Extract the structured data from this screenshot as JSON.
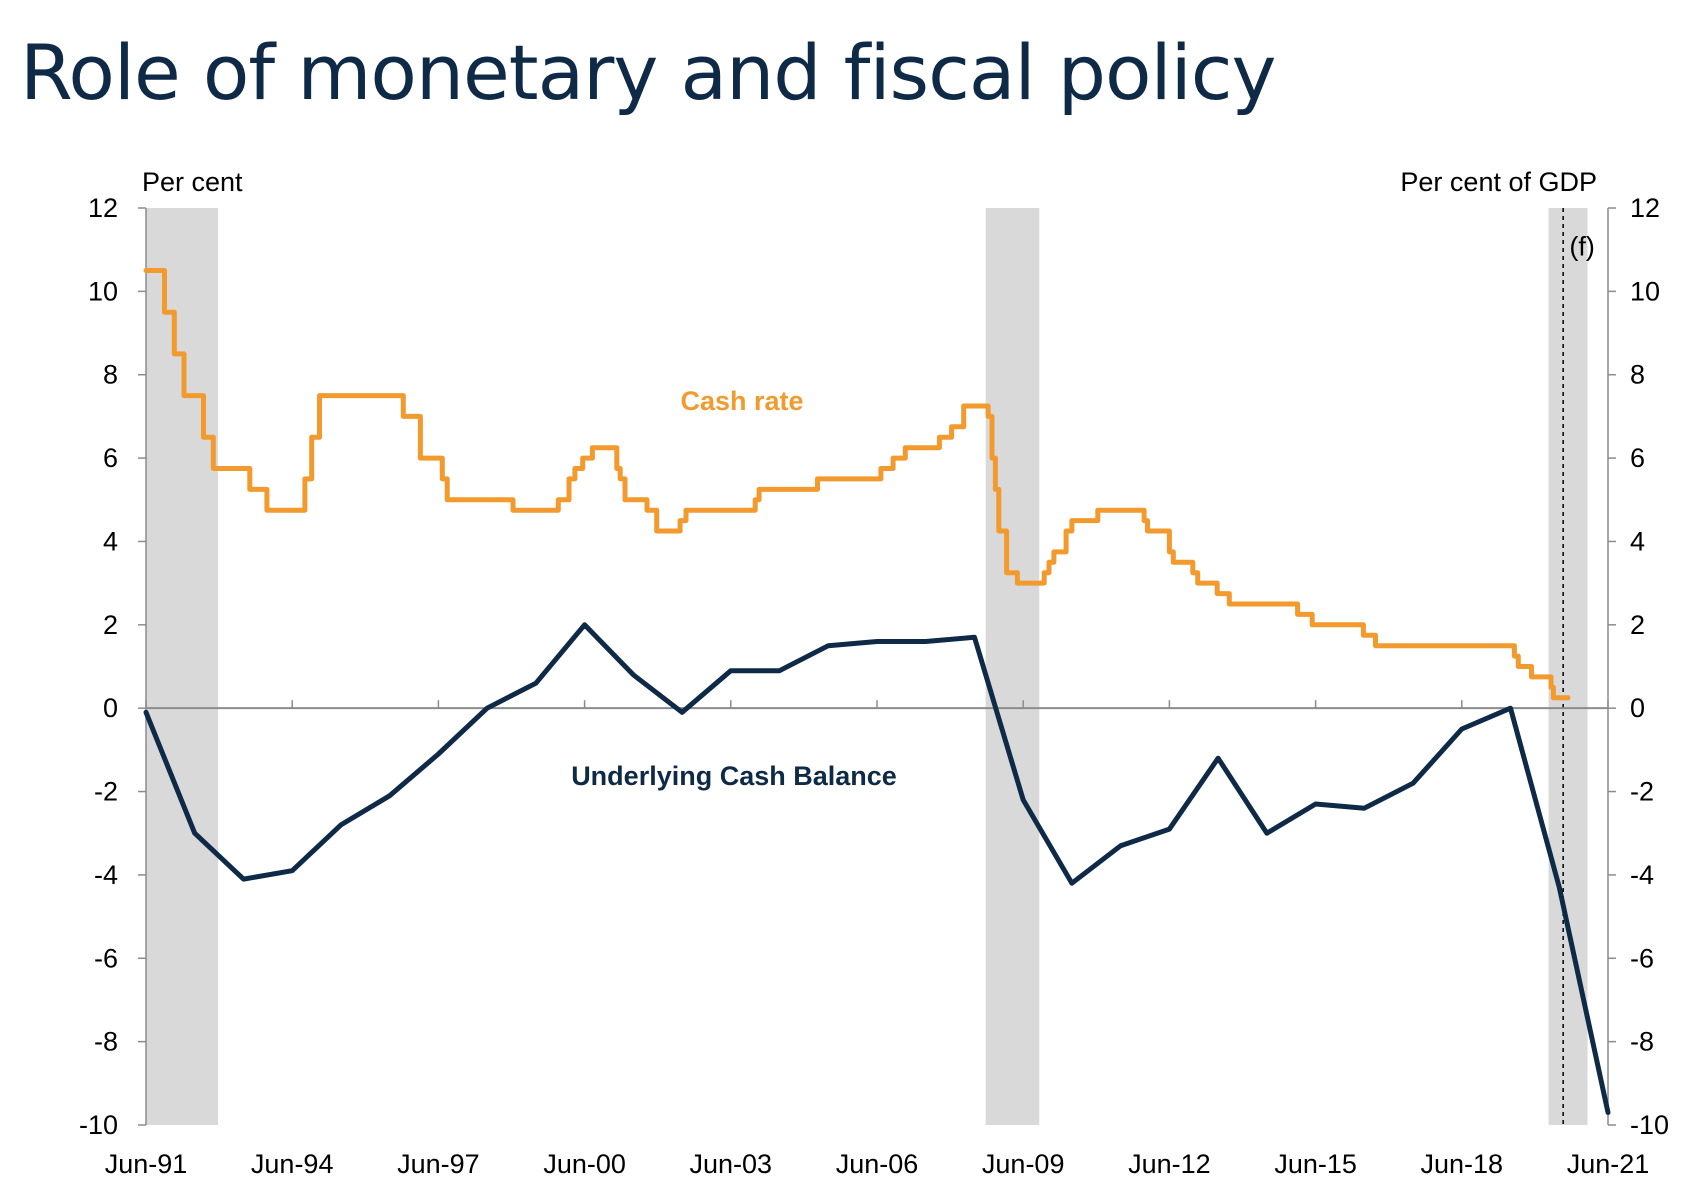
{
  "title": "Role of monetary and fiscal policy",
  "chart_data": {
    "type": "line",
    "left_axis_label": "Per cent",
    "right_axis_label": "Per cent of GDP",
    "forecast_label": "(f)",
    "ylim": [
      -10,
      12
    ],
    "yticks": [
      12,
      10,
      8,
      6,
      4,
      2,
      0,
      -2,
      -4,
      -6,
      -8,
      -10
    ],
    "ytick_labels": [
      "12",
      "10",
      "8",
      "6",
      "4",
      "2",
      "0",
      "-2",
      "-4",
      "-6",
      "-8",
      "-10"
    ],
    "xlim": [
      1991.42,
      2021.42
    ],
    "xticks": [
      1991.42,
      1994.42,
      1997.42,
      2000.42,
      2003.42,
      2006.42,
      2009.42,
      2012.42,
      2015.42,
      2018.42,
      2021.42
    ],
    "xtick_labels": [
      "Jun-91",
      "Jun-94",
      "Jun-97",
      "Jun-00",
      "Jun-03",
      "Jun-06",
      "Jun-09",
      "Jun-12",
      "Jun-15",
      "Jun-18",
      "Jun-21"
    ],
    "recession_bands": [
      [
        1991.42,
        1992.9
      ],
      [
        2008.65,
        2009.75
      ],
      [
        2020.2,
        2021.0
      ]
    ],
    "forecast_start": 2020.5,
    "colors": {
      "cash_rate": "#f29a2e",
      "ucb": "#0f2a47",
      "band": "#d9d9d9",
      "zero_line": "#8c8c8c"
    },
    "series": [
      {
        "name": "Cash rate",
        "style": "step",
        "points": [
          [
            1991.42,
            10.5
          ],
          [
            1991.75,
            10.5
          ],
          [
            1991.8,
            9.5
          ],
          [
            1991.95,
            9.5
          ],
          [
            1992.0,
            8.5
          ],
          [
            1992.12,
            8.5
          ],
          [
            1992.2,
            7.5
          ],
          [
            1992.5,
            7.5
          ],
          [
            1992.6,
            6.5
          ],
          [
            1992.7,
            6.5
          ],
          [
            1992.8,
            5.75
          ],
          [
            1993.5,
            5.75
          ],
          [
            1993.55,
            5.25
          ],
          [
            1993.8,
            5.25
          ],
          [
            1993.9,
            4.75
          ],
          [
            1994.6,
            4.75
          ],
          [
            1994.68,
            5.5
          ],
          [
            1994.75,
            5.5
          ],
          [
            1994.82,
            6.5
          ],
          [
            1994.9,
            6.5
          ],
          [
            1994.98,
            7.5
          ],
          [
            1996.6,
            7.5
          ],
          [
            1996.7,
            7.0
          ],
          [
            1996.95,
            7.0
          ],
          [
            1997.05,
            6.0
          ],
          [
            1997.4,
            6.0
          ],
          [
            1997.5,
            5.5
          ],
          [
            1997.55,
            5.5
          ],
          [
            1997.6,
            5.0
          ],
          [
            1998.8,
            5.0
          ],
          [
            1998.95,
            4.75
          ],
          [
            1999.8,
            4.75
          ],
          [
            1999.88,
            5.0
          ],
          [
            2000.0,
            5.0
          ],
          [
            2000.1,
            5.5
          ],
          [
            2000.15,
            5.5
          ],
          [
            2000.22,
            5.75
          ],
          [
            2000.3,
            5.75
          ],
          [
            2000.38,
            6.0
          ],
          [
            2000.5,
            6.0
          ],
          [
            2000.58,
            6.25
          ],
          [
            2001.0,
            6.25
          ],
          [
            2001.08,
            5.75
          ],
          [
            2001.15,
            5.5
          ],
          [
            2001.25,
            5.0
          ],
          [
            2001.6,
            5.0
          ],
          [
            2001.7,
            4.75
          ],
          [
            2001.8,
            4.75
          ],
          [
            2001.9,
            4.25
          ],
          [
            2002.3,
            4.25
          ],
          [
            2002.38,
            4.5
          ],
          [
            2002.5,
            4.75
          ],
          [
            2003.85,
            4.75
          ],
          [
            2003.92,
            5.0
          ],
          [
            2004.0,
            5.25
          ],
          [
            2005.1,
            5.25
          ],
          [
            2005.2,
            5.5
          ],
          [
            2006.4,
            5.5
          ],
          [
            2006.5,
            5.75
          ],
          [
            2006.65,
            5.75
          ],
          [
            2006.75,
            6.0
          ],
          [
            2006.9,
            6.0
          ],
          [
            2007.0,
            6.25
          ],
          [
            2007.6,
            6.25
          ],
          [
            2007.7,
            6.5
          ],
          [
            2007.85,
            6.5
          ],
          [
            2007.95,
            6.75
          ],
          [
            2008.1,
            6.75
          ],
          [
            2008.2,
            7.25
          ],
          [
            2008.6,
            7.25
          ],
          [
            2008.7,
            7.0
          ],
          [
            2008.78,
            6.0
          ],
          [
            2008.85,
            5.25
          ],
          [
            2008.92,
            4.25
          ],
          [
            2009.0,
            4.25
          ],
          [
            2009.08,
            3.25
          ],
          [
            2009.2,
            3.25
          ],
          [
            2009.3,
            3.0
          ],
          [
            2009.75,
            3.0
          ],
          [
            2009.85,
            3.25
          ],
          [
            2009.95,
            3.5
          ],
          [
            2010.05,
            3.75
          ],
          [
            2010.2,
            3.75
          ],
          [
            2010.3,
            4.25
          ],
          [
            2010.42,
            4.5
          ],
          [
            2010.85,
            4.5
          ],
          [
            2010.95,
            4.75
          ],
          [
            2011.8,
            4.75
          ],
          [
            2011.9,
            4.5
          ],
          [
            2011.97,
            4.25
          ],
          [
            2012.35,
            4.25
          ],
          [
            2012.42,
            3.75
          ],
          [
            2012.5,
            3.5
          ],
          [
            2012.8,
            3.5
          ],
          [
            2012.9,
            3.25
          ],
          [
            2013.0,
            3.0
          ],
          [
            2013.3,
            3.0
          ],
          [
            2013.4,
            2.75
          ],
          [
            2013.55,
            2.75
          ],
          [
            2013.65,
            2.5
          ],
          [
            2014.95,
            2.5
          ],
          [
            2015.05,
            2.25
          ],
          [
            2015.25,
            2.25
          ],
          [
            2015.35,
            2.0
          ],
          [
            2016.3,
            2.0
          ],
          [
            2016.4,
            1.75
          ],
          [
            2016.55,
            1.75
          ],
          [
            2016.65,
            1.5
          ],
          [
            2019.42,
            1.5
          ],
          [
            2019.5,
            1.25
          ],
          [
            2019.58,
            1.0
          ],
          [
            2019.75,
            1.0
          ],
          [
            2019.85,
            0.75
          ],
          [
            2020.15,
            0.75
          ],
          [
            2020.25,
            0.5
          ],
          [
            2020.3,
            0.25
          ],
          [
            2020.6,
            0.25
          ]
        ]
      },
      {
        "name": "Underlying Cash Balance",
        "style": "line",
        "points": [
          [
            1991.42,
            -0.1
          ],
          [
            1992.42,
            -3.0
          ],
          [
            1993.42,
            -4.1
          ],
          [
            1994.42,
            -3.9
          ],
          [
            1995.42,
            -2.8
          ],
          [
            1996.42,
            -2.1
          ],
          [
            1997.42,
            -1.1
          ],
          [
            1998.42,
            0.0
          ],
          [
            1999.42,
            0.6
          ],
          [
            2000.42,
            2.0
          ],
          [
            2001.42,
            0.8
          ],
          [
            2002.42,
            -0.1
          ],
          [
            2003.42,
            0.9
          ],
          [
            2004.42,
            0.9
          ],
          [
            2005.42,
            1.5
          ],
          [
            2006.42,
            1.6
          ],
          [
            2007.42,
            1.6
          ],
          [
            2008.42,
            1.7
          ],
          [
            2009.42,
            -2.2
          ],
          [
            2010.42,
            -4.2
          ],
          [
            2011.42,
            -3.3
          ],
          [
            2012.42,
            -2.9
          ],
          [
            2013.42,
            -1.2
          ],
          [
            2014.42,
            -3.0
          ],
          [
            2015.42,
            -2.3
          ],
          [
            2016.42,
            -2.4
          ],
          [
            2017.42,
            -1.8
          ],
          [
            2018.42,
            -0.5
          ],
          [
            2019.42,
            0.0
          ],
          [
            2020.42,
            -4.3
          ],
          [
            2021.42,
            -9.7
          ]
        ]
      }
    ]
  }
}
